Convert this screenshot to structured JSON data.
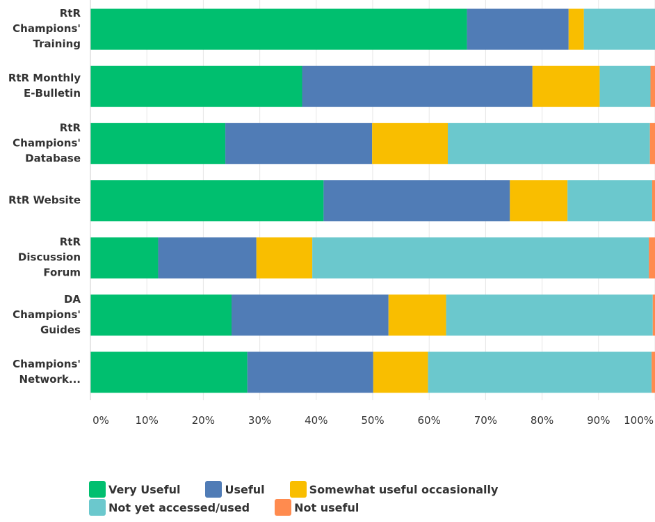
{
  "chart_data": {
    "type": "bar",
    "orientation": "horizontal",
    "stacked": true,
    "categories": [
      "RtR Champions' Training",
      "RtR Monthly E-Bulletin",
      "RtR Champions' Database",
      "RtR Website",
      "RtR Discussion Forum",
      "DA Champions' Guides",
      "Champions' Network..."
    ],
    "category_lines": [
      [
        "RtR",
        "Champions'",
        "Training"
      ],
      [
        "RtR Monthly",
        "E-Bulletin"
      ],
      [
        "RtR",
        "Champions'",
        "Database"
      ],
      [
        "RtR Website"
      ],
      [
        "RtR",
        "Discussion",
        "Forum"
      ],
      [
        "DA",
        "Champions'",
        "Guides"
      ],
      [
        "Champions'",
        "Network..."
      ]
    ],
    "series": [
      {
        "name": "Very Useful",
        "color": "#00BF6F",
        "values": [
          66.7,
          37.5,
          23.9,
          41.3,
          12.0,
          25.0,
          27.8
        ]
      },
      {
        "name": "Useful",
        "color": "#507CB6",
        "values": [
          18.0,
          40.8,
          26.0,
          33.0,
          17.4,
          27.8,
          22.3
        ]
      },
      {
        "name": "Somewhat useful occasionally",
        "color": "#F9BE00",
        "values": [
          2.7,
          11.9,
          13.4,
          10.2,
          9.9,
          10.2,
          9.7
        ]
      },
      {
        "name": "Not yet accessed/used",
        "color": "#6BC8CD",
        "values": [
          12.6,
          9.0,
          35.8,
          15.0,
          59.6,
          36.6,
          39.6
        ]
      },
      {
        "name": "Not useful",
        "color": "#FF8B4F",
        "values": [
          0.0,
          0.8,
          0.9,
          0.5,
          1.1,
          0.4,
          0.6
        ]
      }
    ],
    "x_ticks": [
      "0%",
      "10%",
      "20%",
      "30%",
      "40%",
      "50%",
      "60%",
      "70%",
      "80%",
      "90%",
      "100%"
    ],
    "xlim": [
      0,
      100
    ],
    "grid": true,
    "legend_position": "bottom"
  }
}
